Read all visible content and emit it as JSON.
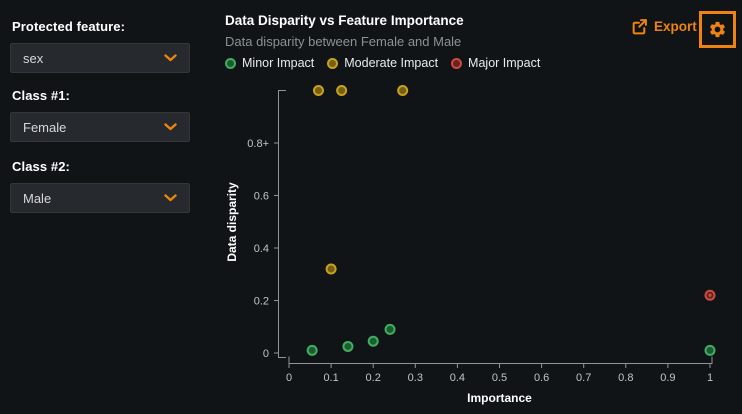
{
  "app": {
    "background_color": "#111416",
    "accent_color": "#ee830f"
  },
  "sidebar": {
    "protected_feature": {
      "label": "Protected feature:",
      "value": "sex"
    },
    "class1": {
      "label": "Class #1:",
      "value": "Female"
    },
    "class2": {
      "label": "Class #2:",
      "value": "Male"
    }
  },
  "header": {
    "title": "Data Disparity vs Feature Importance",
    "subtitle": "Data disparity between Female and Male",
    "export_label": "Export"
  },
  "icons": {
    "export": "box-arrow-up-right",
    "settings": "gear",
    "dropdown": "chevron-down"
  },
  "chart_data": {
    "type": "scatter",
    "title": "Data Disparity vs Feature Importance",
    "xlabel": "Importance",
    "ylabel": "Data disparity",
    "xlim": [
      0,
      1
    ],
    "ylim": [
      0,
      1
    ],
    "grid": false,
    "legend_position": "top",
    "x_ticks": {
      "values": [
        0,
        0.1,
        0.2,
        0.3,
        0.4,
        0.5,
        0.6,
        0.7,
        0.8,
        0.9,
        1
      ],
      "labels": [
        "0",
        "0.1",
        "0.2",
        "0.3",
        "0.4",
        "0.5",
        "0.6",
        "0.7",
        "0.8",
        "0.9",
        "1"
      ]
    },
    "y_ticks": {
      "values": [
        0,
        0.2,
        0.4,
        0.6,
        0.8
      ],
      "labels": [
        "0",
        "0.2",
        "0.4",
        "0.6",
        "0.8+"
      ]
    },
    "series": [
      {
        "name": "Minor Impact",
        "color": "#3fae5f",
        "fill": "#1d5c33",
        "points": [
          [
            0.055,
            0.01
          ],
          [
            0.14,
            0.025
          ],
          [
            0.2,
            0.045
          ],
          [
            0.24,
            0.09
          ],
          [
            1.0,
            0.01
          ]
        ]
      },
      {
        "name": "Moderate Impact",
        "color": "#c9a11f",
        "fill": "#756011",
        "points": [
          [
            0.07,
            1.0
          ],
          [
            0.125,
            1.0
          ],
          [
            0.27,
            1.0
          ],
          [
            0.1,
            0.32
          ]
        ],
        "clipped_at_top_count": 3
      },
      {
        "name": "Major Impact",
        "color": "#cc4b42",
        "fill": "#6b211f",
        "points": [
          [
            1.0,
            0.22
          ]
        ]
      }
    ]
  },
  "settings_highlight": {
    "color": "#ee830f"
  }
}
